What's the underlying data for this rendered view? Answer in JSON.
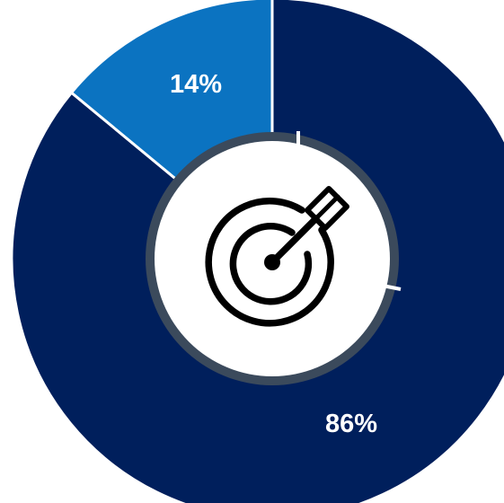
{
  "chart_data": {
    "type": "pie",
    "title": "",
    "slices": [
      {
        "label": "86%",
        "value": 86,
        "color": "#001f5c"
      },
      {
        "label": "14%",
        "value": 14,
        "color": "#0b73c1"
      }
    ],
    "center_icon": "target-icon",
    "center_ring_color": "#3b4a5c"
  }
}
